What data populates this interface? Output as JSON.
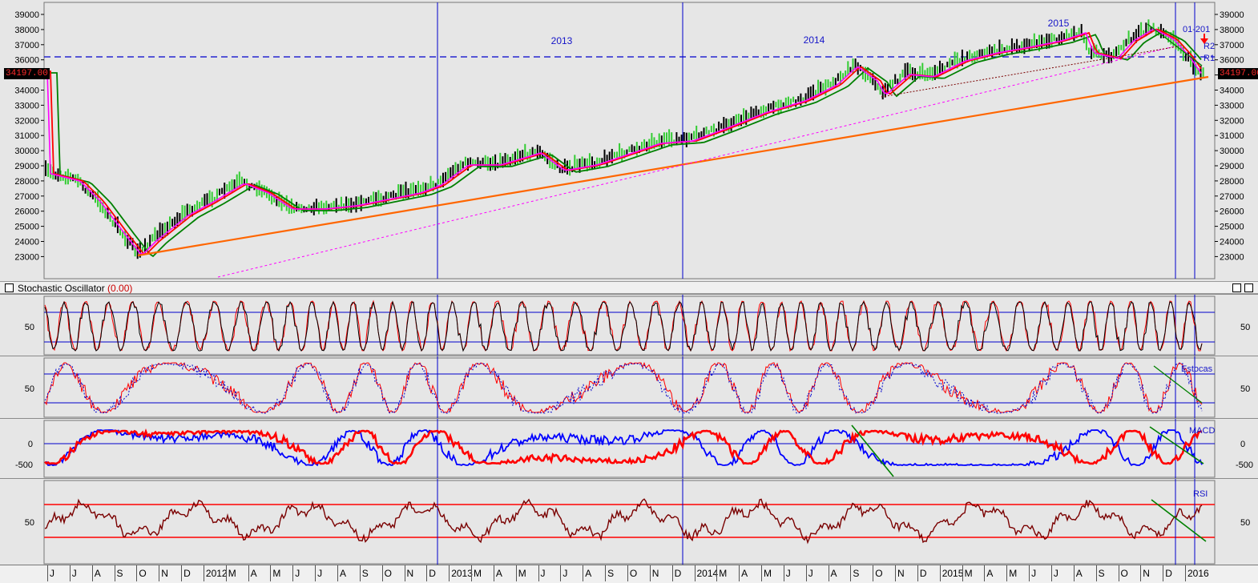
{
  "price_panel": {
    "y_ticks": [
      "39000",
      "38000",
      "37000",
      "36000",
      "35000",
      "34000",
      "33000",
      "32000",
      "31000",
      "30000",
      "29000",
      "28000",
      "27000",
      "26000",
      "25000",
      "24000",
      "23000"
    ],
    "year_labels": [
      "2013",
      "2014",
      "2015"
    ],
    "last_price": "34197.00",
    "callout_01": "01-201",
    "callout_r2": "R2",
    "callout_r1": "R1"
  },
  "stochastic": {
    "title": "Stochastic Oscillator",
    "value": "(0.00)",
    "tick": "50"
  },
  "slow_stochastic": {
    "label": "Estocas",
    "tick": "50"
  },
  "macd": {
    "label": "MACD",
    "ticks": [
      "0",
      "-500"
    ]
  },
  "rsi": {
    "label": "RSI",
    "tick": "50"
  },
  "x_axis": {
    "labels": [
      "J",
      "J",
      "A",
      "S",
      "O",
      "N",
      "D",
      "2012",
      "M",
      "A",
      "M",
      "J",
      "J",
      "A",
      "S",
      "O",
      "N",
      "D",
      "2013",
      "M",
      "A",
      "M",
      "J",
      "J",
      "A",
      "S",
      "O",
      "N",
      "D",
      "2014",
      "M",
      "A",
      "M",
      "J",
      "J",
      "A",
      "S",
      "O",
      "N",
      "D",
      "2015",
      "M",
      "A",
      "M",
      "J",
      "J",
      "A",
      "S",
      "O",
      "N",
      "D",
      "2016"
    ]
  },
  "colors": {
    "price_up": "#33cc33",
    "price_down": "#000000",
    "ma_red": "#ff0000",
    "ma_magenta": "#ff00ff",
    "ma_green": "#008000",
    "trend_orange": "#ff6600",
    "grid_blue": "#0000cc",
    "osc_line": "#7a0000"
  }
}
